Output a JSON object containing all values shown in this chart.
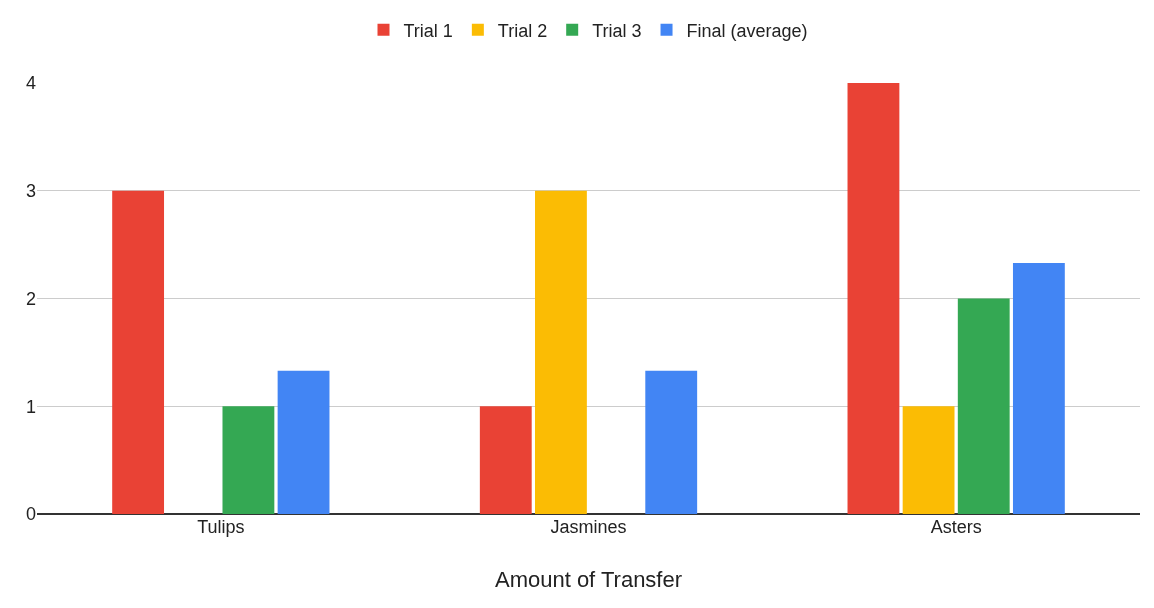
{
  "chart_data": {
    "type": "bar",
    "xlabel": "Amount of Transfer",
    "categories": [
      "Tulips",
      "Jasmines",
      "Asters"
    ],
    "series": [
      {
        "name": "Trial 1",
        "color": "#e94235",
        "values": [
          3,
          1,
          4
        ]
      },
      {
        "name": "Trial 2",
        "color": "#fbbc04",
        "values": [
          0,
          3,
          1
        ]
      },
      {
        "name": "Trial 3",
        "color": "#34a853",
        "values": [
          1,
          0,
          2
        ]
      },
      {
        "name": "Final (average)",
        "color": "#4285f4",
        "values": [
          1.33,
          1.33,
          2.33
        ]
      }
    ],
    "ylim": [
      0,
      4
    ],
    "yticks": [
      0,
      1,
      2,
      3,
      4
    ],
    "grid": "y",
    "legend": "top"
  }
}
